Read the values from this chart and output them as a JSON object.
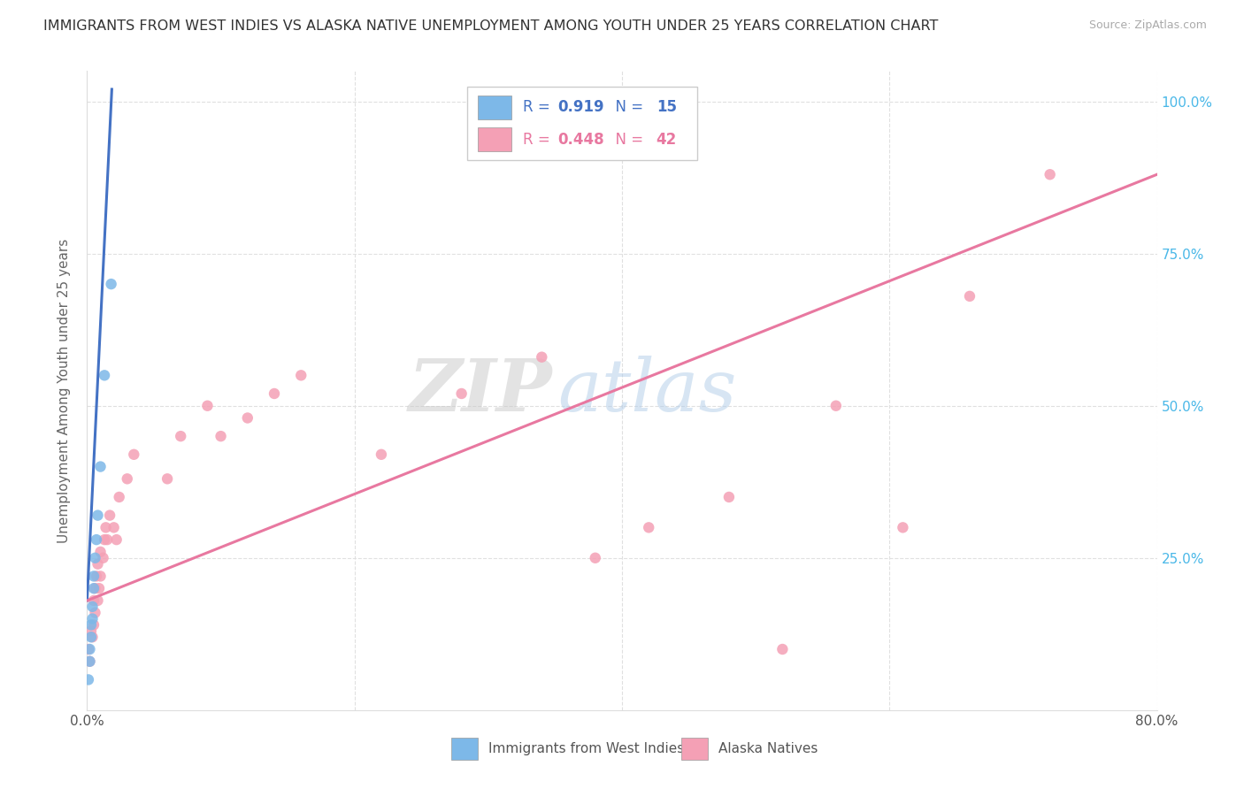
{
  "title": "IMMIGRANTS FROM WEST INDIES VS ALASKA NATIVE UNEMPLOYMENT AMONG YOUTH UNDER 25 YEARS CORRELATION CHART",
  "source": "Source: ZipAtlas.com",
  "ylabel": "Unemployment Among Youth under 25 years",
  "xlim": [
    0,
    0.8
  ],
  "ylim": [
    0,
    1.05
  ],
  "background_color": "#ffffff",
  "watermark_zip": "ZIP",
  "watermark_atlas": "atlas",
  "blue_scatter_x": [
    0.001,
    0.002,
    0.002,
    0.003,
    0.003,
    0.004,
    0.004,
    0.005,
    0.005,
    0.006,
    0.007,
    0.008,
    0.01,
    0.013,
    0.018
  ],
  "blue_scatter_y": [
    0.05,
    0.08,
    0.1,
    0.12,
    0.14,
    0.15,
    0.17,
    0.2,
    0.22,
    0.25,
    0.28,
    0.32,
    0.4,
    0.55,
    0.7
  ],
  "pink_scatter_x": [
    0.001,
    0.002,
    0.003,
    0.004,
    0.005,
    0.005,
    0.006,
    0.006,
    0.007,
    0.008,
    0.008,
    0.009,
    0.01,
    0.01,
    0.012,
    0.013,
    0.014,
    0.015,
    0.017,
    0.02,
    0.022,
    0.024,
    0.03,
    0.035,
    0.06,
    0.07,
    0.09,
    0.1,
    0.12,
    0.14,
    0.16,
    0.22,
    0.28,
    0.34,
    0.38,
    0.42,
    0.48,
    0.52,
    0.56,
    0.61,
    0.66,
    0.72
  ],
  "pink_scatter_y": [
    0.1,
    0.08,
    0.13,
    0.12,
    0.14,
    0.18,
    0.16,
    0.2,
    0.22,
    0.18,
    0.24,
    0.2,
    0.22,
    0.26,
    0.25,
    0.28,
    0.3,
    0.28,
    0.32,
    0.3,
    0.28,
    0.35,
    0.38,
    0.42,
    0.38,
    0.45,
    0.5,
    0.45,
    0.48,
    0.52,
    0.55,
    0.42,
    0.52,
    0.58,
    0.25,
    0.3,
    0.35,
    0.1,
    0.5,
    0.3,
    0.68,
    0.88
  ],
  "blue_line_x": [
    0.0,
    0.0185
  ],
  "blue_line_y": [
    0.18,
    1.02
  ],
  "pink_line_x": [
    0.0,
    0.8
  ],
  "pink_line_y": [
    0.18,
    0.88
  ],
  "dot_color_blue": "#7db8e8",
  "dot_color_pink": "#f4a0b5",
  "line_color_blue": "#4472c4",
  "line_color_pink": "#e878a0",
  "grid_color": "#e0e0e0",
  "right_ytick_positions": [
    0.25,
    0.5,
    0.75,
    1.0
  ],
  "right_ytick_labels": [
    "25.0%",
    "50.0%",
    "75.0%",
    "100.0%"
  ],
  "legend_r1": "0.919",
  "legend_n1": "15",
  "legend_r2": "0.448",
  "legend_n2": "42",
  "legend_color_blue": "#4472c4",
  "legend_color_pink": "#e878a0"
}
